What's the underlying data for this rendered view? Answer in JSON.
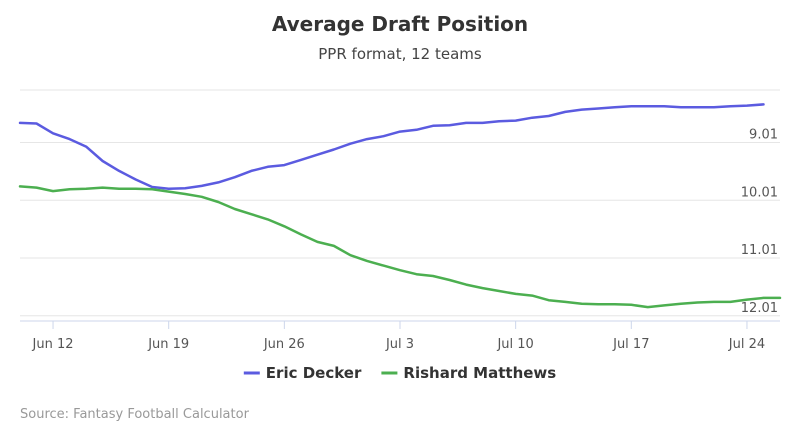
{
  "chart_data": {
    "type": "line",
    "title": "Average Draft Position",
    "subtitle": "PPR format, 12 teams",
    "credit": "Source: Fantasy Football Calculator",
    "y_axis": {
      "reversed": true,
      "position": "right",
      "min": 8.1,
      "max": 12.1,
      "ticks": [
        9.01,
        10.01,
        11.01,
        12.01
      ],
      "tick_labels": [
        "9.01",
        "10.01",
        "11.01",
        "12.01"
      ]
    },
    "x_axis": {
      "min": "Jun 10",
      "max": "Jul 26",
      "ticks": [
        "Jun 12",
        "Jun 19",
        "Jun 26",
        "Jul 3",
        "Jul 10",
        "Jul 17",
        "Jul 24"
      ],
      "tick_labels": [
        "Jun 12",
        "Jun 19",
        "Jun 26",
        "Jul 3",
        "Jul 10",
        "Jul 17",
        "Jul 24"
      ]
    },
    "legend_position": "bottom-center",
    "grid": true,
    "series": [
      {
        "name": "Eric Decker",
        "color": "#5B5BE0",
        "points": [
          [
            "Jun 10",
            8.67
          ],
          [
            "Jun 11",
            8.68
          ],
          [
            "Jun 12",
            8.85
          ],
          [
            "Jun 13",
            8.95
          ],
          [
            "Jun 14",
            9.08
          ],
          [
            "Jun 15",
            9.33
          ],
          [
            "Jun 16",
            9.5
          ],
          [
            "Jun 17",
            9.65
          ],
          [
            "Jun 18",
            9.78
          ],
          [
            "Jun 19",
            9.81
          ],
          [
            "Jun 20",
            9.8
          ],
          [
            "Jun 21",
            9.76
          ],
          [
            "Jun 22",
            9.7
          ],
          [
            "Jun 23",
            9.61
          ],
          [
            "Jun 24",
            9.5
          ],
          [
            "Jun 25",
            9.43
          ],
          [
            "Jun 26",
            9.4
          ],
          [
            "Jun 27",
            9.31
          ],
          [
            "Jun 28",
            9.22
          ],
          [
            "Jun 29",
            9.13
          ],
          [
            "Jun 30",
            9.03
          ],
          [
            "Jul 1",
            8.95
          ],
          [
            "Jul 2",
            8.9
          ],
          [
            "Jul 3",
            8.82
          ],
          [
            "Jul 4",
            8.79
          ],
          [
            "Jul 5",
            8.72
          ],
          [
            "Jul 6",
            8.71
          ],
          [
            "Jul 7",
            8.67
          ],
          [
            "Jul 8",
            8.67
          ],
          [
            "Jul 9",
            8.64
          ],
          [
            "Jul 10",
            8.63
          ],
          [
            "Jul 11",
            8.58
          ],
          [
            "Jul 12",
            8.55
          ],
          [
            "Jul 13",
            8.48
          ],
          [
            "Jul 14",
            8.44
          ],
          [
            "Jul 15",
            8.42
          ],
          [
            "Jul 16",
            8.4
          ],
          [
            "Jul 17",
            8.38
          ],
          [
            "Jul 18",
            8.38
          ],
          [
            "Jul 19",
            8.38
          ],
          [
            "Jul 20",
            8.4
          ],
          [
            "Jul 21",
            8.4
          ],
          [
            "Jul 22",
            8.4
          ],
          [
            "Jul 23",
            8.38
          ],
          [
            "Jul 24",
            8.37
          ],
          [
            "Jul 25",
            8.35
          ]
        ]
      },
      {
        "name": "Rishard Matthews",
        "color": "#4CAF50",
        "points": [
          [
            "Jun 10",
            9.77
          ],
          [
            "Jun 11",
            9.79
          ],
          [
            "Jun 12",
            9.85
          ],
          [
            "Jun 13",
            9.82
          ],
          [
            "Jun 14",
            9.81
          ],
          [
            "Jun 15",
            9.79
          ],
          [
            "Jun 16",
            9.81
          ],
          [
            "Jun 17",
            9.81
          ],
          [
            "Jun 18",
            9.82
          ],
          [
            "Jun 19",
            9.86
          ],
          [
            "Jun 20",
            9.9
          ],
          [
            "Jun 21",
            9.95
          ],
          [
            "Jun 22",
            10.04
          ],
          [
            "Jun 23",
            10.16
          ],
          [
            "Jun 24",
            10.25
          ],
          [
            "Jun 25",
            10.34
          ],
          [
            "Jun 26",
            10.46
          ],
          [
            "Jun 27",
            10.6
          ],
          [
            "Jun 28",
            10.73
          ],
          [
            "Jun 29",
            10.8
          ],
          [
            "Jun 30",
            10.96
          ],
          [
            "Jul 1",
            11.06
          ],
          [
            "Jul 2",
            11.14
          ],
          [
            "Jul 3",
            11.22
          ],
          [
            "Jul 4",
            11.29
          ],
          [
            "Jul 5",
            11.32
          ],
          [
            "Jul 6",
            11.39
          ],
          [
            "Jul 7",
            11.47
          ],
          [
            "Jul 8",
            11.53
          ],
          [
            "Jul 9",
            11.58
          ],
          [
            "Jul 10",
            11.63
          ],
          [
            "Jul 11",
            11.66
          ],
          [
            "Jul 12",
            11.74
          ],
          [
            "Jul 13",
            11.77
          ],
          [
            "Jul 14",
            11.8
          ],
          [
            "Jul 15",
            11.81
          ],
          [
            "Jul 16",
            11.81
          ],
          [
            "Jul 17",
            11.82
          ],
          [
            "Jul 18",
            11.86
          ],
          [
            "Jul 19",
            11.83
          ],
          [
            "Jul 20",
            11.8
          ],
          [
            "Jul 21",
            11.78
          ],
          [
            "Jul 22",
            11.77
          ],
          [
            "Jul 23",
            11.77
          ],
          [
            "Jul 24",
            11.73
          ],
          [
            "Jul 25",
            11.7
          ],
          [
            "Jul 26",
            11.7
          ]
        ]
      }
    ]
  }
}
